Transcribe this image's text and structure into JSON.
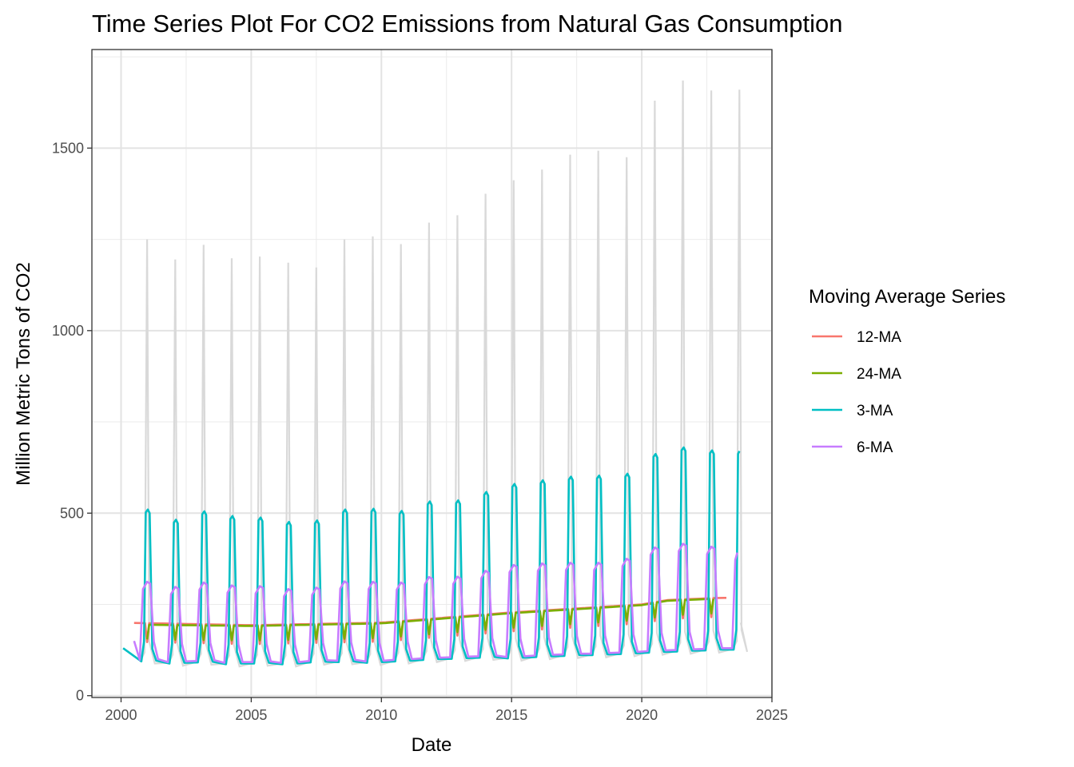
{
  "chart_data": {
    "type": "line",
    "title": "Time Series Plot For CO2 Emissions from Natural Gas Consumption",
    "xlabel": "Date",
    "ylabel": "Million Metric Tons of CO2",
    "xlim": [
      1998.88,
      2025.0
    ],
    "ylim": [
      -5,
      1770
    ],
    "x_ticks": [
      2000,
      2005,
      2010,
      2015,
      2020,
      2025
    ],
    "y_ticks": [
      0,
      500,
      1000,
      1500
    ],
    "grid": true,
    "legend": {
      "title": "Moving Average Series",
      "position": "right"
    },
    "raw_series": {
      "color": "#d9d9d9",
      "annual_spike_dates": [
        2001.0,
        2002.08,
        2003.17,
        2004.25,
        2005.33,
        2006.42,
        2007.5,
        2008.58,
        2009.67,
        2010.75,
        2011.83,
        2012.92,
        2014.0,
        2015.08,
        2016.17,
        2017.25,
        2018.33,
        2019.42,
        2020.5,
        2021.58,
        2022.67,
        2023.75
      ],
      "annual_peaks": [
        1250,
        1195,
        1235,
        1198,
        1203,
        1186,
        1173,
        1250,
        1258,
        1237,
        1296,
        1316,
        1375,
        1412,
        1441,
        1482,
        1493,
        1475,
        1630,
        1685,
        1658,
        1660
      ],
      "annual_lows": [
        88,
        82,
        85,
        80,
        82,
        80,
        85,
        86,
        84,
        88,
        92,
        95,
        98,
        96,
        100,
        103,
        105,
        108,
        112,
        115,
        118,
        120
      ],
      "start": [
        2000.08,
        130
      ]
    },
    "series": [
      {
        "name": "12-MA",
        "color": "#F8766D",
        "start": 2000.5,
        "end": 2023.33,
        "level_dates": [
          2000,
          2005,
          2010,
          2015,
          2020,
          2021,
          2023
        ],
        "level_values": [
          200,
          193,
          200,
          228,
          250,
          262,
          268
        ],
        "dip_depth": 52
      },
      {
        "name": "24-MA",
        "color": "#7CAE00",
        "start": 2001.0,
        "end": 2022.83,
        "level_dates": [
          2000,
          2005,
          2010,
          2015,
          2020,
          2021,
          2023
        ],
        "level_values": [
          195,
          191,
          198,
          226,
          248,
          260,
          266
        ],
        "dip_depth": 40
      },
      {
        "name": "3-MA",
        "color": "#00BFC4",
        "start": 2000.08,
        "end": 2023.75,
        "annual_peaks": [
          510,
          482,
          505,
          492,
          488,
          476,
          480,
          510,
          512,
          506,
          532,
          535,
          558,
          580,
          590,
          600,
          603,
          608,
          662,
          680,
          672,
          670
        ],
        "annual_lows": [
          88,
          82,
          85,
          80,
          82,
          80,
          85,
          86,
          84,
          88,
          92,
          95,
          98,
          96,
          100,
          103,
          105,
          108,
          112,
          115,
          118,
          120
        ]
      },
      {
        "name": "6-MA",
        "color": "#C77CFF",
        "start": 2000.5,
        "end": 2023.67,
        "annual_peaks": [
          312,
          298,
          310,
          302,
          300,
          292,
          296,
          313,
          312,
          310,
          325,
          326,
          342,
          358,
          362,
          364,
          364,
          375,
          406,
          416,
          408,
          392
        ],
        "annual_lows": [
          88,
          82,
          85,
          80,
          82,
          80,
          85,
          86,
          84,
          88,
          92,
          95,
          98,
          96,
          100,
          103,
          105,
          108,
          112,
          115,
          118,
          120
        ]
      }
    ]
  }
}
